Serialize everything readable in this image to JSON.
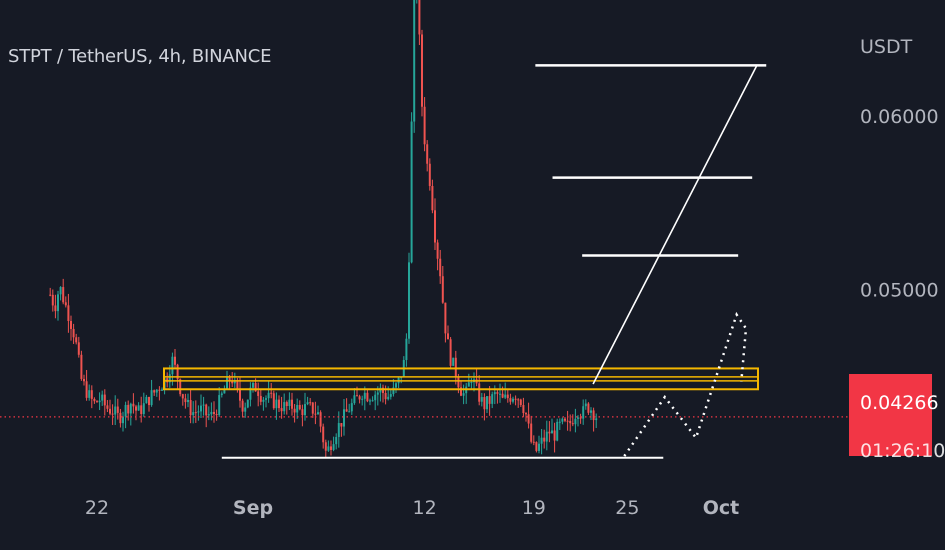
{
  "header": {
    "title": "STPT / TetherUS, 4h, BINANCE"
  },
  "chart_data": {
    "type": "candlestick",
    "currency_label": "USDT",
    "y_ticks": [
      {
        "label": "0.06000",
        "value": 0.06
      },
      {
        "label": "0.05000",
        "value": 0.05
      }
    ],
    "x_ticks": [
      {
        "label": "22",
        "day": 22
      },
      {
        "label": "Sep",
        "day": 32
      },
      {
        "label": "12",
        "day": 43
      },
      {
        "label": "19",
        "day": 50
      },
      {
        "label": "25",
        "day": 56
      },
      {
        "label": "Oct",
        "day": 62
      }
    ],
    "last_price": {
      "label": "0.04266",
      "value": 0.04266
    },
    "countdown": "01:26:10",
    "colors": {
      "background": "#161a25",
      "up": "#26a69a",
      "down": "#ef5350",
      "zone": "#f5b700",
      "drawing": "#ffffff",
      "price_line": "#f23645"
    },
    "resistance_zone": {
      "low": 0.04425,
      "high": 0.04545
    },
    "support_line": {
      "x_from": 30,
      "x_to": 58.3,
      "price": 0.0403
    },
    "target_lines": [
      {
        "x_from": 53.1,
        "x_to": 63.1,
        "price": 0.05196
      },
      {
        "x_from": 51.2,
        "x_to": 64.0,
        "price": 0.05645
      },
      {
        "x_from": 50.1,
        "x_to": 64.9,
        "price": 0.06292
      }
    ],
    "trend_line": {
      "x1": 53.8,
      "y1": 0.04455,
      "x2": 64.3,
      "y2": 0.06292
    },
    "projection_path": [
      {
        "x": 55.8,
        "y": 0.0404
      },
      {
        "x": 58.4,
        "y": 0.0438
      },
      {
        "x": 60.4,
        "y": 0.04145
      },
      {
        "x": 63.0,
        "y": 0.04855
      },
      {
        "x": 63.6,
        "y": 0.04775
      },
      {
        "x": 63.3,
        "y": 0.0447
      }
    ],
    "price_series": [
      [
        19.0,
        0.0497
      ],
      [
        19.3,
        0.049
      ],
      [
        19.6,
        0.0502
      ],
      [
        19.9,
        0.0493
      ],
      [
        20.2,
        0.0485
      ],
      [
        20.6,
        0.0472
      ],
      [
        21.0,
        0.0448
      ],
      [
        21.4,
        0.044
      ],
      [
        21.8,
        0.0434
      ],
      [
        22.2,
        0.0437
      ],
      [
        22.6,
        0.0432
      ],
      [
        23.0,
        0.043
      ],
      [
        23.4,
        0.0426
      ],
      [
        23.8,
        0.0431
      ],
      [
        24.2,
        0.0435
      ],
      [
        24.6,
        0.0429
      ],
      [
        25.0,
        0.0433
      ],
      [
        25.4,
        0.0438
      ],
      [
        25.8,
        0.0442
      ],
      [
        26.2,
        0.0446
      ],
      [
        26.5,
        0.045
      ],
      [
        26.8,
        0.046
      ],
      [
        27.1,
        0.0452
      ],
      [
        27.4,
        0.0441
      ],
      [
        27.8,
        0.0433
      ],
      [
        28.2,
        0.0429
      ],
      [
        28.6,
        0.0431
      ],
      [
        29.0,
        0.0428
      ],
      [
        29.4,
        0.0427
      ],
      [
        29.8,
        0.0434
      ],
      [
        30.2,
        0.0443
      ],
      [
        30.6,
        0.045
      ],
      [
        31.0,
        0.044
      ],
      [
        31.4,
        0.0432
      ],
      [
        31.8,
        0.0441
      ],
      [
        32.2,
        0.0444
      ],
      [
        32.6,
        0.0438
      ],
      [
        33.0,
        0.0437
      ],
      [
        33.4,
        0.0435
      ],
      [
        33.8,
        0.0433
      ],
      [
        34.2,
        0.0432
      ],
      [
        34.6,
        0.0433
      ],
      [
        35.0,
        0.043
      ],
      [
        35.4,
        0.0432
      ],
      [
        35.8,
        0.0431
      ],
      [
        36.2,
        0.0428
      ],
      [
        36.4,
        0.0418
      ],
      [
        36.7,
        0.0405
      ],
      [
        37.0,
        0.0412
      ],
      [
        37.4,
        0.042
      ],
      [
        37.8,
        0.0426
      ],
      [
        38.2,
        0.0432
      ],
      [
        38.6,
        0.0436
      ],
      [
        39.0,
        0.0441
      ],
      [
        39.4,
        0.0439
      ],
      [
        39.8,
        0.044
      ],
      [
        40.2,
        0.0442
      ],
      [
        40.6,
        0.0438
      ],
      [
        41.0,
        0.0441
      ],
      [
        41.4,
        0.0448
      ],
      [
        41.8,
        0.0462
      ],
      [
        42.0,
        0.052
      ],
      [
        42.2,
        0.061
      ],
      [
        42.4,
        0.069
      ],
      [
        42.6,
        0.066
      ],
      [
        42.8,
        0.061
      ],
      [
        43.1,
        0.0575
      ],
      [
        43.4,
        0.056
      ],
      [
        43.7,
        0.0528
      ],
      [
        44.0,
        0.051
      ],
      [
        44.3,
        0.048
      ],
      [
        44.6,
        0.0462
      ],
      [
        45.0,
        0.0452
      ],
      [
        45.3,
        0.0443
      ],
      [
        45.6,
        0.0438
      ],
      [
        46.0,
        0.045
      ],
      [
        46.4,
        0.044
      ],
      [
        46.8,
        0.0433
      ],
      [
        47.2,
        0.0436
      ],
      [
        47.6,
        0.044
      ],
      [
        48.0,
        0.0436
      ],
      [
        48.4,
        0.0438
      ],
      [
        48.8,
        0.044
      ],
      [
        49.2,
        0.0436
      ],
      [
        49.5,
        0.0428
      ],
      [
        49.8,
        0.0413
      ],
      [
        50.1,
        0.0406
      ],
      [
        50.4,
        0.0411
      ],
      [
        50.7,
        0.0414
      ],
      [
        51.0,
        0.0418
      ],
      [
        51.3,
        0.0416
      ],
      [
        51.6,
        0.0421
      ],
      [
        51.9,
        0.0422
      ],
      [
        52.2,
        0.0421
      ],
      [
        52.5,
        0.0426
      ],
      [
        52.8,
        0.0431
      ],
      [
        53.1,
        0.0428
      ],
      [
        53.4,
        0.0433
      ],
      [
        53.7,
        0.0431
      ],
      [
        54.0,
        0.0427
      ]
    ]
  }
}
